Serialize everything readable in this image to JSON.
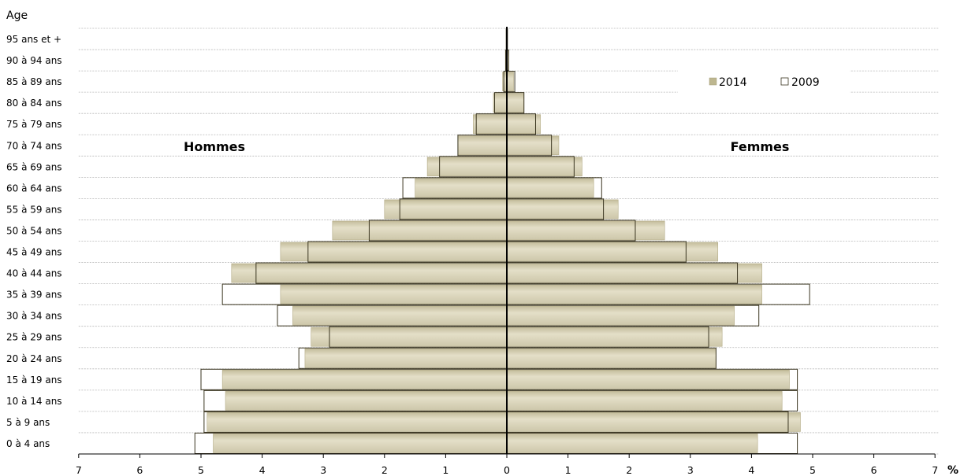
{
  "chart_data": {
    "type": "bar",
    "orientation": "horizontal",
    "subtype": "population-pyramid",
    "title": "",
    "ylabel": "Age",
    "xunit": "%",
    "xlim": [
      -7,
      7
    ],
    "xticks": [
      7,
      6,
      5,
      4,
      3,
      2,
      1,
      0,
      1,
      2,
      3,
      4,
      5,
      6,
      7
    ],
    "grid": true,
    "legend_position": "top-right",
    "side_labels": {
      "left": "Hommes",
      "right": "Femmes"
    },
    "categories": [
      "0 à 4 ans",
      "5 à 9 ans",
      "10 à 14 ans",
      "15 à 19 ans",
      "20 à 24 ans",
      "25 à 29 ans",
      "30 à 34 ans",
      "35 à 39 ans",
      "40 à 44 ans",
      "45 à 49 ans",
      "50 à 54 ans",
      "55 à 59 ans",
      "60 à 64 ans",
      "65 à 69 ans",
      "70 à 74 ans",
      "75 à 79 ans",
      "80 à 84 ans",
      "85 à 89 ans",
      "90 à 94 ans",
      "95 ans et +"
    ],
    "series": [
      {
        "name": "2014",
        "color": "#d2ccb0",
        "style": "filled",
        "men": [
          4.8,
          4.9,
          4.6,
          4.65,
          3.3,
          3.2,
          3.5,
          3.7,
          4.5,
          3.7,
          2.85,
          2.0,
          1.5,
          1.3,
          0.8,
          0.55,
          0.22,
          0.07,
          0.02,
          0.01
        ],
        "women": [
          4.1,
          4.8,
          4.5,
          4.62,
          3.42,
          3.52,
          3.72,
          4.17,
          4.17,
          3.45,
          2.58,
          1.82,
          1.42,
          1.23,
          0.85,
          0.55,
          0.28,
          0.11,
          0.03,
          0.01
        ]
      },
      {
        "name": "2009",
        "color": "#ffffff",
        "style": "outline",
        "men": [
          5.1,
          4.95,
          4.95,
          5.0,
          3.4,
          2.9,
          3.75,
          4.65,
          4.1,
          3.25,
          2.25,
          1.75,
          1.7,
          1.1,
          0.8,
          0.5,
          0.2,
          0.05,
          0.02,
          0.01
        ],
        "women": [
          4.75,
          4.6,
          4.75,
          4.75,
          3.42,
          3.3,
          4.12,
          4.95,
          3.77,
          2.93,
          2.1,
          1.58,
          1.55,
          1.1,
          0.73,
          0.47,
          0.28,
          0.13,
          0.03,
          0.01
        ]
      }
    ]
  },
  "colors": {
    "fill_2014": "#d2ccb0",
    "fill_2014_light": "#ece8d6",
    "fill_2014_dark": "#b6ae8a",
    "outline": "#3a3520",
    "grid": "#b8b8b8",
    "axis": "#000000"
  }
}
